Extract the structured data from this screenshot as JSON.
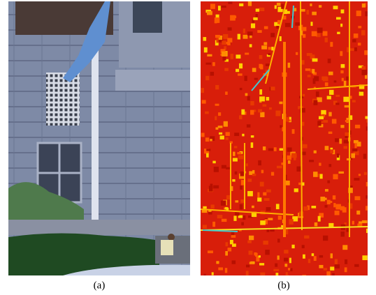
{
  "figure": {
    "panels": [
      {
        "caption": "(a)"
      },
      {
        "caption": "(b)"
      }
    ]
  }
}
